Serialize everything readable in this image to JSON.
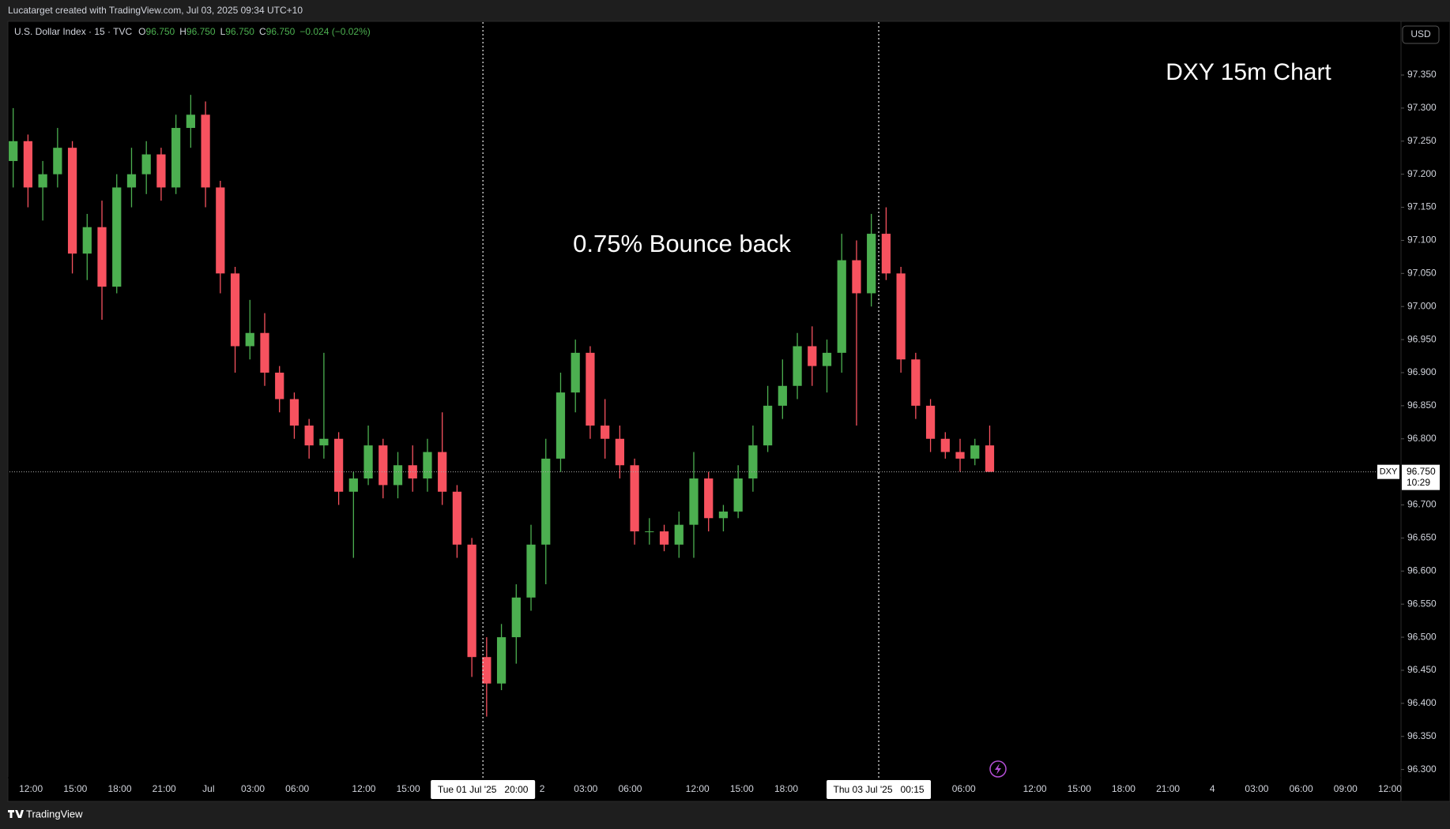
{
  "header": {
    "credit": "Lucatarget created with TradingView.com, Jul 03, 2025 09:34 UTC+10",
    "symbol": "U.S. Dollar Index · 15 · TVC",
    "fields": [
      {
        "key": "O",
        "value": "96.750"
      },
      {
        "key": "H",
        "value": "96.750"
      },
      {
        "key": "L",
        "value": "96.750"
      },
      {
        "key": "C",
        "value": "96.750"
      }
    ],
    "change": "−0.024 (−0.02%)"
  },
  "footer": {
    "brand": "TradingView"
  },
  "chart_data": {
    "type": "candlestick",
    "title": "DXY 15m Chart",
    "annotation": "0.75% Bounce back",
    "currency": "USD",
    "up_color": "#4caf50",
    "down_color": "#f7525f",
    "grid": false,
    "x": [
      0,
      1,
      2,
      3,
      4,
      5,
      6,
      7,
      8,
      9,
      10,
      11,
      12,
      13,
      14,
      15,
      16,
      17,
      18,
      19,
      20,
      21,
      22,
      23,
      24,
      25,
      26,
      27,
      28,
      29,
      30,
      31,
      32,
      33,
      34,
      35,
      36,
      37,
      38,
      39,
      40,
      41,
      42,
      43,
      44,
      45,
      46,
      47,
      48,
      49,
      50,
      51,
      52,
      53,
      54,
      55,
      56,
      57,
      58,
      59,
      60,
      61,
      62,
      63,
      64,
      65,
      66
    ],
    "open": [
      97.22,
      97.25,
      97.18,
      97.2,
      97.24,
      97.08,
      97.12,
      97.03,
      97.18,
      97.2,
      97.23,
      97.18,
      97.27,
      97.29,
      97.18,
      97.05,
      96.94,
      96.96,
      96.9,
      96.86,
      96.82,
      96.79,
      96.8,
      96.72,
      96.74,
      96.79,
      96.73,
      96.76,
      96.74,
      96.78,
      96.72,
      96.64,
      96.47,
      96.43,
      96.5,
      96.56,
      96.64,
      96.77,
      96.87,
      96.93,
      96.82,
      96.8,
      96.76,
      96.66,
      96.66,
      96.64,
      96.67,
      96.74,
      96.68,
      96.69,
      96.74,
      96.79,
      96.85,
      96.88,
      96.94,
      96.91,
      96.93,
      97.07,
      97.02,
      97.11,
      97.05,
      96.92,
      96.85,
      96.8,
      96.78,
      96.77,
      96.79
    ],
    "high": [
      97.3,
      97.26,
      97.22,
      97.27,
      97.25,
      97.14,
      97.16,
      97.2,
      97.24,
      97.25,
      97.24,
      97.29,
      97.32,
      97.31,
      97.19,
      97.06,
      97.01,
      96.99,
      96.91,
      96.87,
      96.83,
      96.93,
      96.81,
      96.75,
      96.82,
      96.8,
      96.78,
      96.79,
      96.8,
      96.84,
      96.73,
      96.65,
      96.5,
      96.52,
      96.58,
      96.67,
      96.8,
      96.9,
      96.95,
      96.94,
      96.86,
      96.82,
      96.77,
      96.68,
      96.67,
      96.69,
      96.78,
      96.75,
      96.7,
      96.76,
      96.82,
      96.88,
      96.92,
      96.96,
      96.97,
      96.95,
      97.11,
      97.1,
      97.14,
      97.15,
      97.06,
      96.93,
      96.86,
      96.81,
      96.8,
      96.8,
      96.82
    ],
    "low": [
      97.18,
      97.15,
      97.13,
      97.18,
      97.05,
      97.04,
      96.98,
      97.02,
      97.15,
      97.17,
      97.16,
      97.17,
      97.24,
      97.15,
      97.02,
      96.9,
      96.92,
      96.88,
      96.84,
      96.8,
      96.77,
      96.77,
      96.7,
      96.62,
      96.73,
      96.71,
      96.71,
      96.72,
      96.72,
      96.7,
      96.62,
      96.44,
      96.38,
      96.42,
      96.46,
      96.54,
      96.58,
      96.75,
      96.84,
      96.8,
      96.77,
      96.74,
      96.64,
      96.64,
      96.63,
      96.62,
      96.62,
      96.66,
      96.66,
      96.68,
      96.72,
      96.78,
      96.83,
      96.86,
      96.88,
      96.87,
      96.9,
      96.82,
      97.0,
      97.04,
      96.9,
      96.83,
      96.78,
      96.77,
      96.75,
      96.76,
      96.75
    ],
    "close": [
      97.25,
      97.18,
      97.2,
      97.24,
      97.08,
      97.12,
      97.03,
      97.18,
      97.2,
      97.23,
      97.18,
      97.27,
      97.29,
      97.18,
      97.05,
      96.94,
      96.96,
      96.9,
      96.86,
      96.82,
      96.79,
      96.8,
      96.72,
      96.74,
      96.79,
      96.73,
      96.76,
      96.74,
      96.78,
      96.72,
      96.64,
      96.47,
      96.43,
      96.5,
      96.56,
      96.64,
      96.77,
      96.87,
      96.93,
      96.82,
      96.8,
      96.76,
      96.66,
      96.66,
      96.64,
      96.67,
      96.74,
      96.68,
      96.69,
      96.74,
      96.79,
      96.85,
      96.88,
      96.94,
      96.91,
      96.93,
      97.07,
      97.02,
      97.11,
      97.05,
      96.92,
      96.85,
      96.8,
      96.78,
      96.77,
      96.79,
      96.75
    ],
    "xlim": [
      -0.25,
      93.8
    ],
    "xticks": [
      {
        "value": 1.2,
        "label": "12:00"
      },
      {
        "value": 4.2,
        "label": "15:00"
      },
      {
        "value": 7.2,
        "label": "18:00"
      },
      {
        "value": 10.2,
        "label": "21:00"
      },
      {
        "value": 13.2,
        "label": "Jul"
      },
      {
        "value": 16.2,
        "label": "03:00"
      },
      {
        "value": 19.2,
        "label": "06:00"
      },
      {
        "value": 23.7,
        "label": "12:00"
      },
      {
        "value": 26.7,
        "label": "15:00"
      },
      {
        "value": 35.75,
        "label": "2"
      },
      {
        "value": 38.7,
        "label": "03:00"
      },
      {
        "value": 41.7,
        "label": "06:00"
      },
      {
        "value": 46.25,
        "label": "12:00"
      },
      {
        "value": 49.25,
        "label": "15:00"
      },
      {
        "value": 52.25,
        "label": "18:00"
      },
      {
        "value": 64.25,
        "label": "06:00"
      },
      {
        "value": 69.05,
        "label": "12:00"
      },
      {
        "value": 72.05,
        "label": "15:00"
      },
      {
        "value": 75.05,
        "label": "18:00"
      },
      {
        "value": 78.05,
        "label": "21:00"
      },
      {
        "value": 81.05,
        "label": "4"
      },
      {
        "value": 84.05,
        "label": "03:00"
      },
      {
        "value": 87.05,
        "label": "06:00"
      },
      {
        "value": 90.05,
        "label": "09:00"
      },
      {
        "value": 93.05,
        "label": "12:00"
      }
    ],
    "crosshairs": [
      {
        "value": 31.75,
        "label": "Tue 01 Jul '25   20:00"
      },
      {
        "value": 58.5,
        "label": "Thu 03 Jul '25   00:15"
      }
    ],
    "ylim": [
      96.29,
      97.43
    ],
    "yticks": [
      {
        "value": 96.3,
        "label": "96.300"
      },
      {
        "value": 96.35,
        "label": "96.350"
      },
      {
        "value": 96.4,
        "label": "96.400"
      },
      {
        "value": 96.45,
        "label": "96.450"
      },
      {
        "value": 96.5,
        "label": "96.500"
      },
      {
        "value": 96.55,
        "label": "96.550"
      },
      {
        "value": 96.6,
        "label": "96.600"
      },
      {
        "value": 96.65,
        "label": "96.650"
      },
      {
        "value": 96.7,
        "label": "96.700"
      },
      {
        "value": 96.8,
        "label": "96.800"
      },
      {
        "value": 96.85,
        "label": "96.850"
      },
      {
        "value": 96.9,
        "label": "96.900"
      },
      {
        "value": 96.95,
        "label": "96.950"
      },
      {
        "value": 97.0,
        "label": "97.000"
      },
      {
        "value": 97.05,
        "label": "97.050"
      },
      {
        "value": 97.1,
        "label": "97.100"
      },
      {
        "value": 97.15,
        "label": "97.150"
      },
      {
        "value": 97.2,
        "label": "97.200"
      },
      {
        "value": 97.25,
        "label": "97.250"
      },
      {
        "value": 97.3,
        "label": "97.300"
      },
      {
        "value": 97.35,
        "label": "97.350"
      }
    ],
    "last_price": {
      "value": 96.75,
      "label": "96.750",
      "symbol": "DXY",
      "countdown": "10:29"
    }
  }
}
